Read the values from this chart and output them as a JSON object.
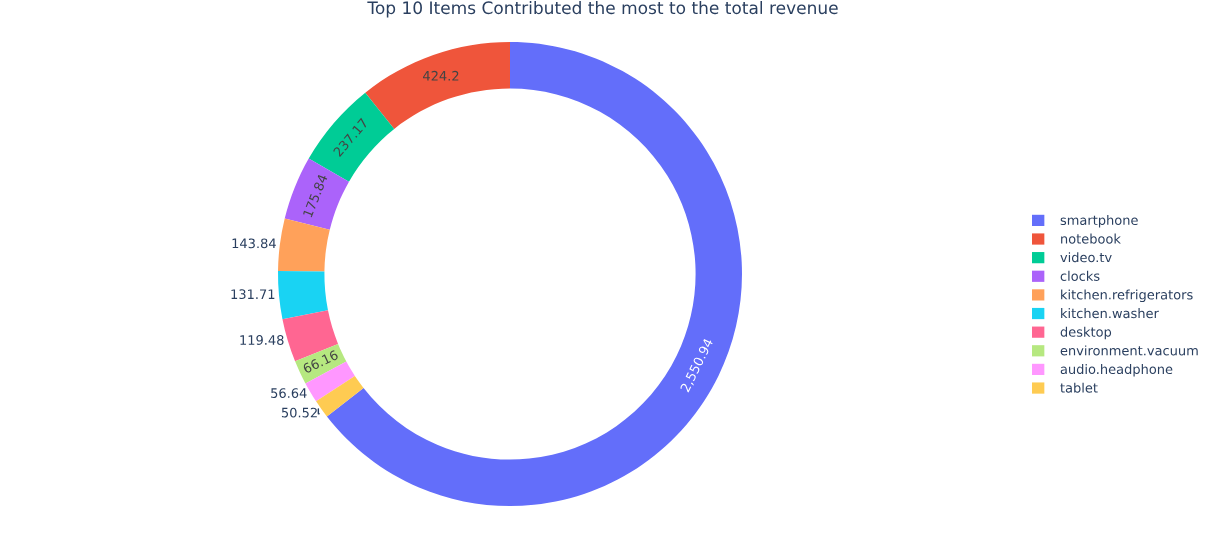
{
  "chart_data": {
    "type": "donut",
    "title": "Top 10 Items Contributed the most to the total revenue",
    "categories": [
      "smartphone",
      "notebook",
      "video.tv",
      "clocks",
      "kitchen.refrigerators",
      "kitchen.washer",
      "desktop",
      "environment.vacuum",
      "audio.headphone",
      "tablet"
    ],
    "values": [
      2550.94,
      424.2,
      237.17,
      175.84,
      143.84,
      131.71,
      119.48,
      66.16,
      56.64,
      50.52
    ],
    "value_labels": [
      "2,550.94",
      "424.2",
      "237.17",
      "175.84",
      "143.84",
      "131.71",
      "119.48",
      "66.16",
      "56.64",
      "50.52"
    ],
    "colors": [
      "#636efa",
      "#ef553b",
      "#00cc96",
      "#ab63fa",
      "#ffa15a",
      "#19d3f3",
      "#ff6692",
      "#b6e880",
      "#ff97ff",
      "#fecb52"
    ],
    "legend": "right"
  }
}
